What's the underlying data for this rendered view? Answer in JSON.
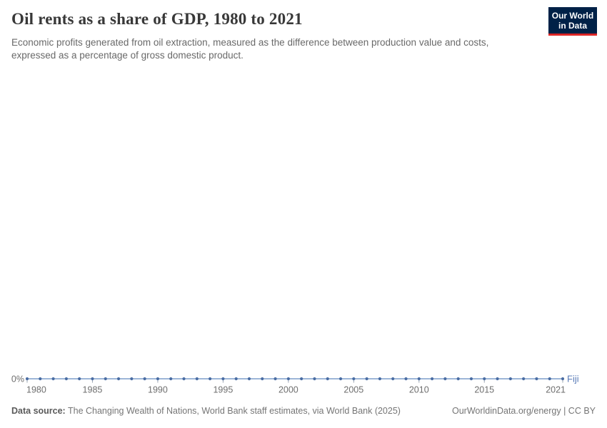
{
  "header": {
    "title": "Oil rents as a share of GDP, 1980 to 2021",
    "subtitle": "Economic profits generated from oil extraction, measured as the difference between production value and costs, expressed as a percentage of gross domestic product."
  },
  "logo": {
    "line1": "Our World",
    "line2": "in Data",
    "bg_color": "#002147",
    "bar_color": "#dc2626"
  },
  "chart_data": {
    "type": "line",
    "title": "Oil rents as a share of GDP, 1980 to 2021",
    "xlabel": "",
    "ylabel": "Oil rents as a share of GDP",
    "xlim": [
      1980,
      2021
    ],
    "ylim": [
      0,
      0
    ],
    "grid": false,
    "legend_position": "end-of-line",
    "x": [
      1980,
      1981,
      1982,
      1983,
      1984,
      1985,
      1986,
      1987,
      1988,
      1989,
      1990,
      1991,
      1992,
      1993,
      1994,
      1995,
      1996,
      1997,
      1998,
      1999,
      2000,
      2001,
      2002,
      2003,
      2004,
      2005,
      2006,
      2007,
      2008,
      2009,
      2010,
      2011,
      2012,
      2013,
      2014,
      2015,
      2016,
      2017,
      2018,
      2019,
      2020,
      2021
    ],
    "series": [
      {
        "name": "Fiji",
        "values": [
          0,
          0,
          0,
          0,
          0,
          0,
          0,
          0,
          0,
          0,
          0,
          0,
          0,
          0,
          0,
          0,
          0,
          0,
          0,
          0,
          0,
          0,
          0,
          0,
          0,
          0,
          0,
          0,
          0,
          0,
          0,
          0,
          0,
          0,
          0,
          0,
          0,
          0,
          0,
          0,
          0,
          0
        ],
        "line_color": "#9db6d8",
        "dot_color": "#4a6da3",
        "label_color": "#5b7db8"
      }
    ],
    "x_tick_labels": [
      "1980",
      "1985",
      "1990",
      "1995",
      "2000",
      "2005",
      "2010",
      "2015",
      "2021"
    ],
    "x_tick_values": [
      1980,
      1985,
      1990,
      1995,
      2000,
      2005,
      2010,
      2015,
      2021
    ],
    "y_tick_labels": [
      "0%"
    ],
    "axis_text_color": "#6e6e6e",
    "tick_color": "#9aa4b2"
  },
  "footer": {
    "source_label": "Data source:",
    "source_text": " The Changing Wealth of Nations, World Bank staff estimates, via World Bank (2025)",
    "link_text": "OurWorldinData.org/energy | CC BY"
  }
}
